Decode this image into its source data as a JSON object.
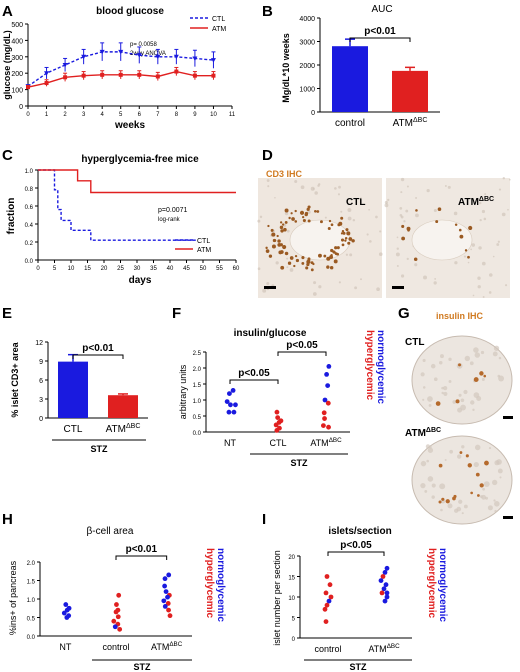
{
  "panels": {
    "A": {
      "letter": "A"
    },
    "B": {
      "letter": "B"
    },
    "C": {
      "letter": "C"
    },
    "D": {
      "letter": "D",
      "stain_label": "CD3 IHC",
      "left_label": "CTL",
      "right_label": "ATM",
      "right_label_sup": "ΔBC"
    },
    "E": {
      "letter": "E"
    },
    "F": {
      "letter": "F"
    },
    "G": {
      "letter": "G",
      "stain_label": "insulin IHC",
      "top_label": "CTL",
      "bottom_label": "ATM",
      "bottom_label_sup": "ΔBC"
    },
    "H": {
      "letter": "H"
    },
    "I": {
      "letter": "I"
    }
  },
  "side_labels": {
    "normoglycemic": "normoglycemic",
    "hyperglycemic": "hyperglycemic"
  },
  "colors": {
    "blue": "#1a1adf",
    "red": "#e02020",
    "stain": "#d07a20",
    "tissue": "#f0ebe6"
  },
  "chart_data": [
    {
      "id": "A",
      "type": "line",
      "title": "blood glucose",
      "xlabel": "weeks",
      "ylabel": "glucose (mg/dL)",
      "xlim": [
        0,
        11
      ],
      "ylim": [
        0,
        500
      ],
      "xticks": [
        "0",
        "1",
        "2",
        "3",
        "4",
        "5",
        "6",
        "7",
        "8",
        "9",
        "10",
        "11"
      ],
      "yticks": [
        "0",
        "100",
        "200",
        "300",
        "400",
        "500"
      ],
      "annotation": [
        "p= 0.0058",
        "2way ANOVA"
      ],
      "legend": "top-right",
      "x": [
        0,
        1,
        2,
        3,
        4,
        5,
        6,
        7,
        8,
        9,
        10
      ],
      "series": [
        {
          "name": "CTL",
          "color": "#1a1adf",
          "style": "dashed",
          "values": [
            120,
            200,
            250,
            300,
            330,
            330,
            310,
            300,
            300,
            290,
            280
          ],
          "errors": [
            10,
            35,
            40,
            45,
            55,
            55,
            50,
            45,
            45,
            50,
            50
          ]
        },
        {
          "name": "ATM",
          "color": "#e02020",
          "style": "solid",
          "values": [
            115,
            140,
            175,
            185,
            190,
            190,
            190,
            180,
            210,
            185,
            185
          ],
          "errors": [
            10,
            20,
            25,
            25,
            25,
            25,
            25,
            25,
            25,
            25,
            25
          ]
        }
      ]
    },
    {
      "id": "B",
      "type": "bar",
      "title": "AUC",
      "ylabel": "Mg/dL*10 weeks",
      "ylim": [
        0,
        4000
      ],
      "yticks": [
        "0",
        "1000",
        "2000",
        "3000",
        "4000"
      ],
      "categories": [
        "control",
        "ATM"
      ],
      "category_sup": [
        "",
        "ΔBC"
      ],
      "values": [
        2800,
        1750
      ],
      "errors": [
        300,
        150
      ],
      "colors": [
        "#1a1adf",
        "#e02020"
      ],
      "significance": "p<0.01"
    },
    {
      "id": "C",
      "type": "line",
      "title": "hyperglycemia-free mice",
      "xlabel": "days",
      "ylabel": "fraction",
      "xlim": [
        0,
        60
      ],
      "ylim": [
        0,
        1
      ],
      "xticks": [
        "0",
        "5",
        "10",
        "15",
        "20",
        "25",
        "30",
        "35",
        "40",
        "45",
        "50",
        "55",
        "60"
      ],
      "yticks": [
        "0.0",
        "0.2",
        "0.4",
        "0.6",
        "0.8",
        "1.0"
      ],
      "annotation": [
        "p=0.0071",
        "log-rank"
      ],
      "legend": "bottom-right",
      "series": [
        {
          "name": "CTL",
          "color": "#1a1adf",
          "style": "dashed",
          "x": [
            0,
            5,
            5,
            6,
            6,
            7,
            7,
            10,
            10,
            16,
            16,
            32,
            32,
            48
          ],
          "y": [
            1,
            1,
            0.78,
            0.78,
            0.56,
            0.56,
            0.44,
            0.44,
            0.33,
            0.33,
            0.22,
            0.22,
            0.22,
            0.22
          ]
        },
        {
          "name": "ATM",
          "color": "#e02020",
          "style": "solid",
          "x": [
            0,
            12,
            12,
            16,
            16,
            60
          ],
          "y": [
            1,
            1,
            0.88,
            0.88,
            0.75,
            0.75
          ]
        }
      ]
    },
    {
      "id": "E",
      "type": "bar",
      "ylabel": "% islet CD3+ area",
      "ylim": [
        0,
        12
      ],
      "yticks": [
        "0",
        "3",
        "6",
        "9",
        "12"
      ],
      "categories": [
        "CTL",
        "ATM"
      ],
      "category_sup": [
        "",
        "ΔBC"
      ],
      "values": [
        8.9,
        3.6
      ],
      "errors": [
        1.1,
        0.2
      ],
      "colors": [
        "#1a1adf",
        "#e02020"
      ],
      "significance": "p<0.01",
      "group_label": "STZ"
    },
    {
      "id": "F",
      "type": "scatter",
      "title": "insulin/glucose",
      "ylabel": "arbitrary units",
      "ylim": [
        0,
        2.5
      ],
      "yticks": [
        "0.0",
        "0.5",
        "1.0",
        "1.5",
        "2.0",
        "2.5"
      ],
      "categories": [
        "NT",
        "CTL",
        "ATM"
      ],
      "category_sup": [
        "",
        "",
        "ΔBC"
      ],
      "group_label": "STZ",
      "significance": [
        {
          "from": 0,
          "to": 1,
          "label": "p<0.05"
        },
        {
          "from": 1,
          "to": 2,
          "label": "p<0.05"
        }
      ],
      "points": [
        {
          "cat": 0,
          "y": 1.3,
          "c": "b"
        },
        {
          "cat": 0,
          "y": 1.2,
          "c": "b"
        },
        {
          "cat": 0,
          "y": 0.95,
          "c": "b"
        },
        {
          "cat": 0,
          "y": 0.85,
          "c": "b"
        },
        {
          "cat": 0,
          "y": 0.85,
          "c": "b"
        },
        {
          "cat": 0,
          "y": 0.62,
          "c": "b"
        },
        {
          "cat": 0,
          "y": 0.62,
          "c": "b"
        },
        {
          "cat": 1,
          "y": 0.62,
          "c": "r"
        },
        {
          "cat": 1,
          "y": 0.45,
          "c": "r"
        },
        {
          "cat": 1,
          "y": 0.35,
          "c": "r"
        },
        {
          "cat": 1,
          "y": 0.3,
          "c": "r"
        },
        {
          "cat": 1,
          "y": 0.22,
          "c": "r"
        },
        {
          "cat": 1,
          "y": 0.12,
          "c": "r"
        },
        {
          "cat": 1,
          "y": 0.05,
          "c": "r"
        },
        {
          "cat": 2,
          "y": 2.05,
          "c": "b"
        },
        {
          "cat": 2,
          "y": 1.8,
          "c": "b"
        },
        {
          "cat": 2,
          "y": 1.45,
          "c": "b"
        },
        {
          "cat": 2,
          "y": 1.0,
          "c": "b"
        },
        {
          "cat": 2,
          "y": 0.9,
          "c": "r"
        },
        {
          "cat": 2,
          "y": 0.6,
          "c": "r"
        },
        {
          "cat": 2,
          "y": 0.42,
          "c": "r"
        },
        {
          "cat": 2,
          "y": 0.2,
          "c": "r"
        },
        {
          "cat": 2,
          "y": 0.15,
          "c": "r"
        }
      ]
    },
    {
      "id": "H",
      "type": "scatter",
      "title": "β-cell area",
      "ylabel": "%ins+ of pancreas",
      "ylim": [
        0,
        2.0
      ],
      "yticks": [
        "0.0",
        "0.5",
        "1.0",
        "1.5",
        "2.0"
      ],
      "categories": [
        "NT",
        "control",
        "ATM"
      ],
      "category_sup": [
        "",
        "",
        "ΔBC"
      ],
      "group_label": "STZ",
      "significance": [
        {
          "from": 1,
          "to": 2,
          "label": "p<0.01"
        }
      ],
      "points": [
        {
          "cat": 0,
          "y": 0.85,
          "c": "b"
        },
        {
          "cat": 0,
          "y": 0.75,
          "c": "b"
        },
        {
          "cat": 0,
          "y": 0.7,
          "c": "b"
        },
        {
          "cat": 0,
          "y": 0.62,
          "c": "b"
        },
        {
          "cat": 0,
          "y": 0.55,
          "c": "b"
        },
        {
          "cat": 0,
          "y": 0.5,
          "c": "b"
        },
        {
          "cat": 1,
          "y": 1.1,
          "c": "r"
        },
        {
          "cat": 1,
          "y": 0.85,
          "c": "r"
        },
        {
          "cat": 1,
          "y": 0.7,
          "c": "r"
        },
        {
          "cat": 1,
          "y": 0.65,
          "c": "r"
        },
        {
          "cat": 1,
          "y": 0.52,
          "c": "r"
        },
        {
          "cat": 1,
          "y": 0.4,
          "c": "r"
        },
        {
          "cat": 1,
          "y": 0.32,
          "c": "r"
        },
        {
          "cat": 1,
          "y": 0.25,
          "c": "b"
        },
        {
          "cat": 1,
          "y": 0.18,
          "c": "r"
        },
        {
          "cat": 2,
          "y": 1.65,
          "c": "b"
        },
        {
          "cat": 2,
          "y": 1.55,
          "c": "b"
        },
        {
          "cat": 2,
          "y": 1.35,
          "c": "b"
        },
        {
          "cat": 2,
          "y": 1.2,
          "c": "b"
        },
        {
          "cat": 2,
          "y": 1.1,
          "c": "r"
        },
        {
          "cat": 2,
          "y": 1.05,
          "c": "b"
        },
        {
          "cat": 2,
          "y": 0.95,
          "c": "b"
        },
        {
          "cat": 2,
          "y": 0.88,
          "c": "r"
        },
        {
          "cat": 2,
          "y": 0.8,
          "c": "b"
        },
        {
          "cat": 2,
          "y": 0.7,
          "c": "r"
        },
        {
          "cat": 2,
          "y": 0.55,
          "c": "r"
        }
      ]
    },
    {
      "id": "I",
      "type": "scatter",
      "title": "islets/section",
      "ylabel": "islet number per section",
      "ylim": [
        0,
        20
      ],
      "yticks": [
        "0",
        "5",
        "10",
        "15",
        "20"
      ],
      "categories": [
        "control",
        "ATM"
      ],
      "category_sup": [
        "",
        "ΔBC"
      ],
      "group_label": "STZ",
      "significance": [
        {
          "from": 0,
          "to": 1,
          "label": "p<0.05"
        }
      ],
      "points": [
        {
          "cat": 0,
          "y": 15,
          "c": "r"
        },
        {
          "cat": 0,
          "y": 13,
          "c": "r"
        },
        {
          "cat": 0,
          "y": 11,
          "c": "r"
        },
        {
          "cat": 0,
          "y": 10,
          "c": "r"
        },
        {
          "cat": 0,
          "y": 9,
          "c": "b"
        },
        {
          "cat": 0,
          "y": 8,
          "c": "r"
        },
        {
          "cat": 0,
          "y": 7,
          "c": "r"
        },
        {
          "cat": 0,
          "y": 4,
          "c": "r"
        },
        {
          "cat": 1,
          "y": 17,
          "c": "b"
        },
        {
          "cat": 1,
          "y": 16,
          "c": "b"
        },
        {
          "cat": 1,
          "y": 15,
          "c": "r"
        },
        {
          "cat": 1,
          "y": 14,
          "c": "b"
        },
        {
          "cat": 1,
          "y": 13,
          "c": "b"
        },
        {
          "cat": 1,
          "y": 12,
          "c": "b"
        },
        {
          "cat": 1,
          "y": 11,
          "c": "r"
        },
        {
          "cat": 1,
          "y": 11,
          "c": "b"
        },
        {
          "cat": 1,
          "y": 10,
          "c": "b"
        },
        {
          "cat": 1,
          "y": 9,
          "c": "b"
        }
      ]
    }
  ]
}
